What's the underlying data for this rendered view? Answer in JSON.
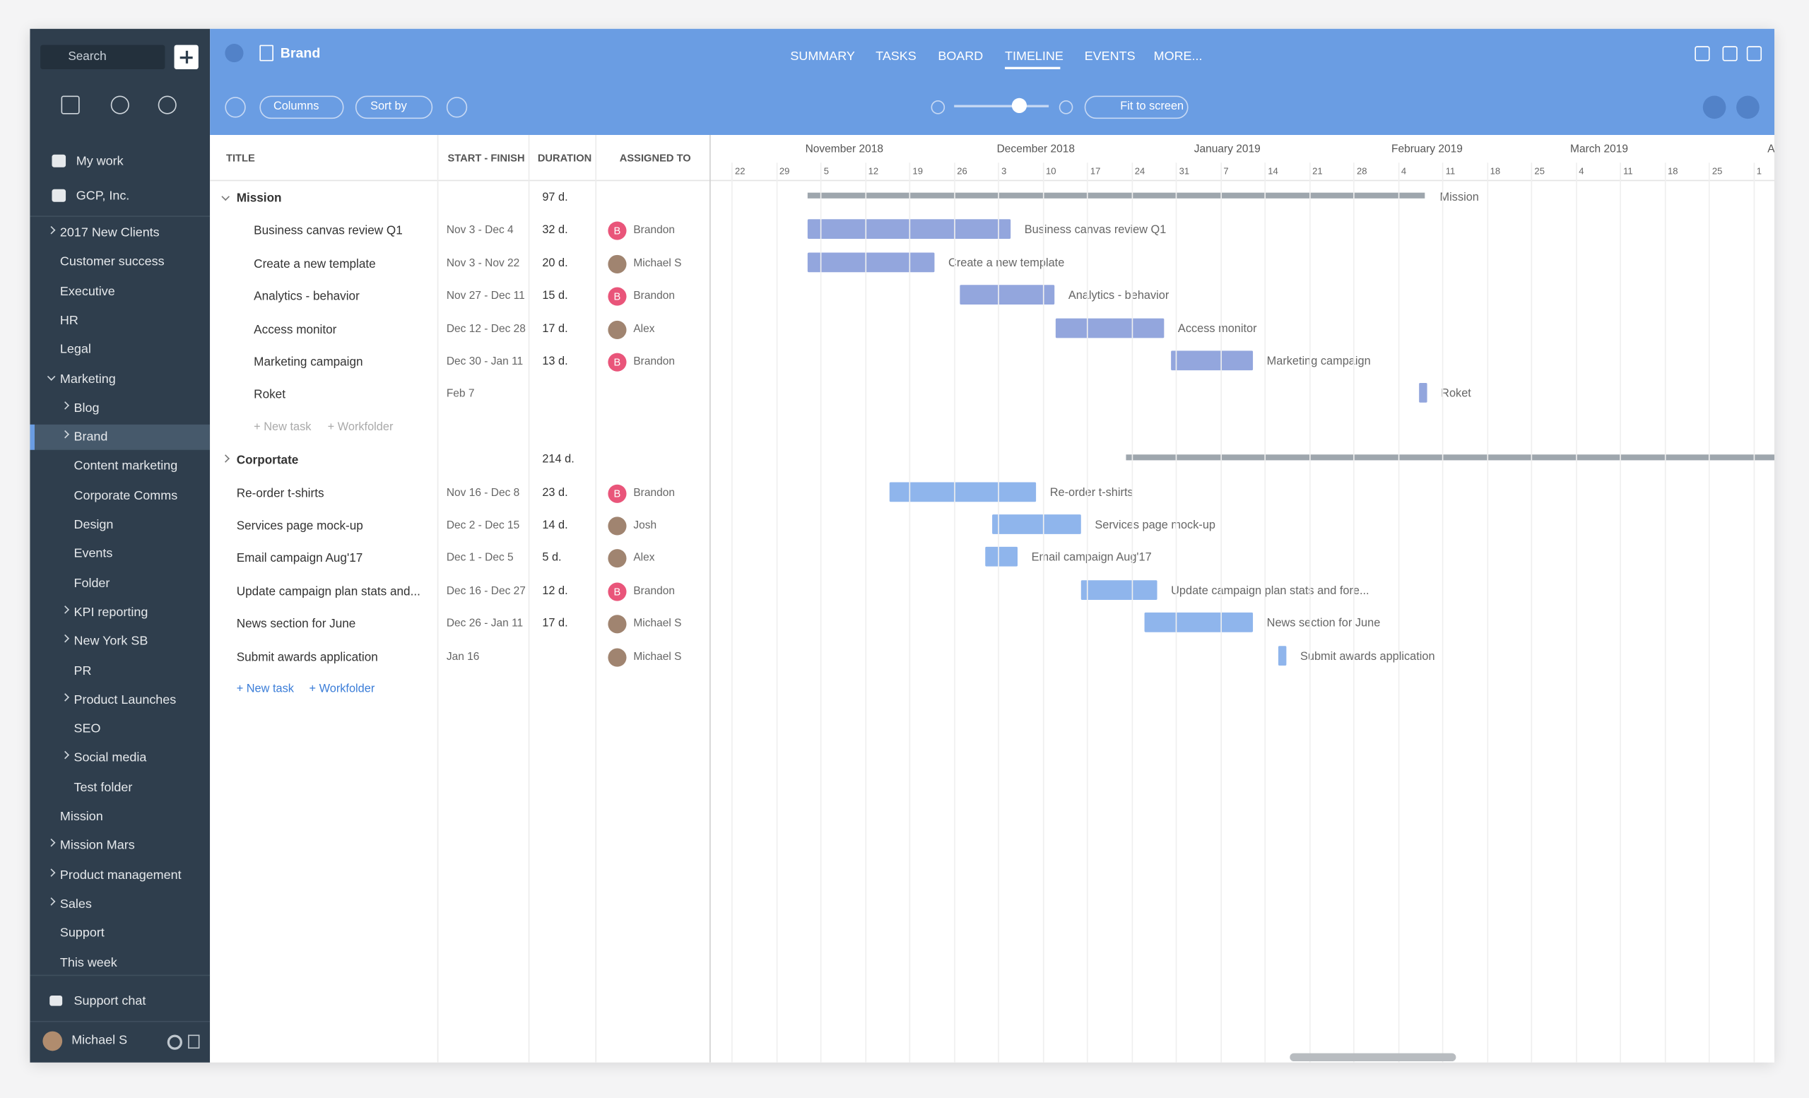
{
  "sidebar": {
    "search_placeholder": "Search",
    "top_items": [
      "My work",
      "GCP, Inc."
    ],
    "folders": [
      "2017 New Clients",
      "Customer success",
      "Executive",
      "HR",
      "Legal",
      "Marketing",
      "Blog",
      "Brand",
      "Content marketing",
      "Corporate Comms",
      "Design",
      "Events",
      "Folder",
      "KPI reporting",
      "New York SB",
      "PR",
      "Product Launches",
      "SEO",
      "Social media",
      "Test folder",
      "Mission",
      "Mission Mars",
      "Product management",
      "Sales",
      "Support",
      "This week"
    ],
    "support_chat": "Support chat",
    "user": "Michael S"
  },
  "header": {
    "title": "Brand",
    "tabs": [
      "SUMMARY",
      "TASKS",
      "BOARD",
      "TIMELINE",
      "EVENTS",
      "MORE..."
    ],
    "toolbar": {
      "columns": "Columns",
      "sort_by": "Sort by",
      "fit_to_screen": "Fit to screen"
    }
  },
  "table": {
    "columns": [
      "TITLE",
      "START - FINISH",
      "DURATION",
      "ASSIGNED TO"
    ],
    "groups": [
      {
        "title": "Mission",
        "duration": "97 d.",
        "tasks": [
          {
            "title": "Business canvas review Q1",
            "dates": "Nov 3 - Dec 4",
            "duration": "32 d.",
            "assignee": "Brandon",
            "avatar_initial": "B"
          },
          {
            "title": "Create a new template",
            "dates": "Nov 3 - Nov 22",
            "duration": "20 d.",
            "assignee": "Michael S"
          },
          {
            "title": "Analytics - behavior",
            "dates": "Nov 27 - Dec 11",
            "duration": "15 d.",
            "assignee": "Brandon",
            "avatar_initial": "B"
          },
          {
            "title": "Access monitor",
            "dates": "Dec 12 - Dec 28",
            "duration": "17 d.",
            "assignee": "Alex"
          },
          {
            "title": "Marketing campaign",
            "dates": "Dec 30 - Jan 11",
            "duration": "13 d.",
            "assignee": "Brandon",
            "avatar_initial": "B"
          },
          {
            "title": "Roket",
            "dates": "Feb 7"
          }
        ],
        "new_task": "+ New task",
        "new_workfolder": "+ Workfolder"
      },
      {
        "title": "Corportate",
        "duration": "214 d.",
        "tasks": [
          {
            "title": "Re-order t-shirts",
            "dates": "Nov 16 - Dec 8",
            "duration": "23 d.",
            "assignee": "Brandon",
            "avatar_initial": "B"
          },
          {
            "title": "Services page mock-up",
            "dates": "Dec 2 - Dec 15",
            "duration": "14 d.",
            "assignee": "Josh"
          },
          {
            "title": "Email campaign Aug'17",
            "dates": "Dec 1 - Dec 5",
            "duration": "5 d.",
            "assignee": "Alex"
          },
          {
            "title": "Update campaign plan stats and...",
            "timeline_label": "Update campaign plan stats and fore...",
            "dates": "Dec 16 - Dec 27",
            "duration": "12 d.",
            "assignee": "Brandon",
            "avatar_initial": "B"
          },
          {
            "title": "News section for June",
            "dates": "Dec 26 - Jan 11",
            "duration": "17 d.",
            "assignee": "Michael S"
          },
          {
            "title": "Submit awards application",
            "dates": "Jan 16",
            "assignee": "Michael S"
          }
        ],
        "new_task": "+ New task",
        "new_workfolder": "+ Workfolder"
      }
    ]
  },
  "timeline": {
    "months": [
      "November 2018",
      "December 2018",
      "January 2019",
      "February 2019",
      "March 2019",
      "A"
    ],
    "days": [
      22,
      29,
      5,
      12,
      19,
      26,
      3,
      10,
      17,
      24,
      31,
      7,
      14,
      21,
      28,
      4,
      11,
      18,
      25,
      4,
      11,
      18,
      25,
      1
    ]
  }
}
